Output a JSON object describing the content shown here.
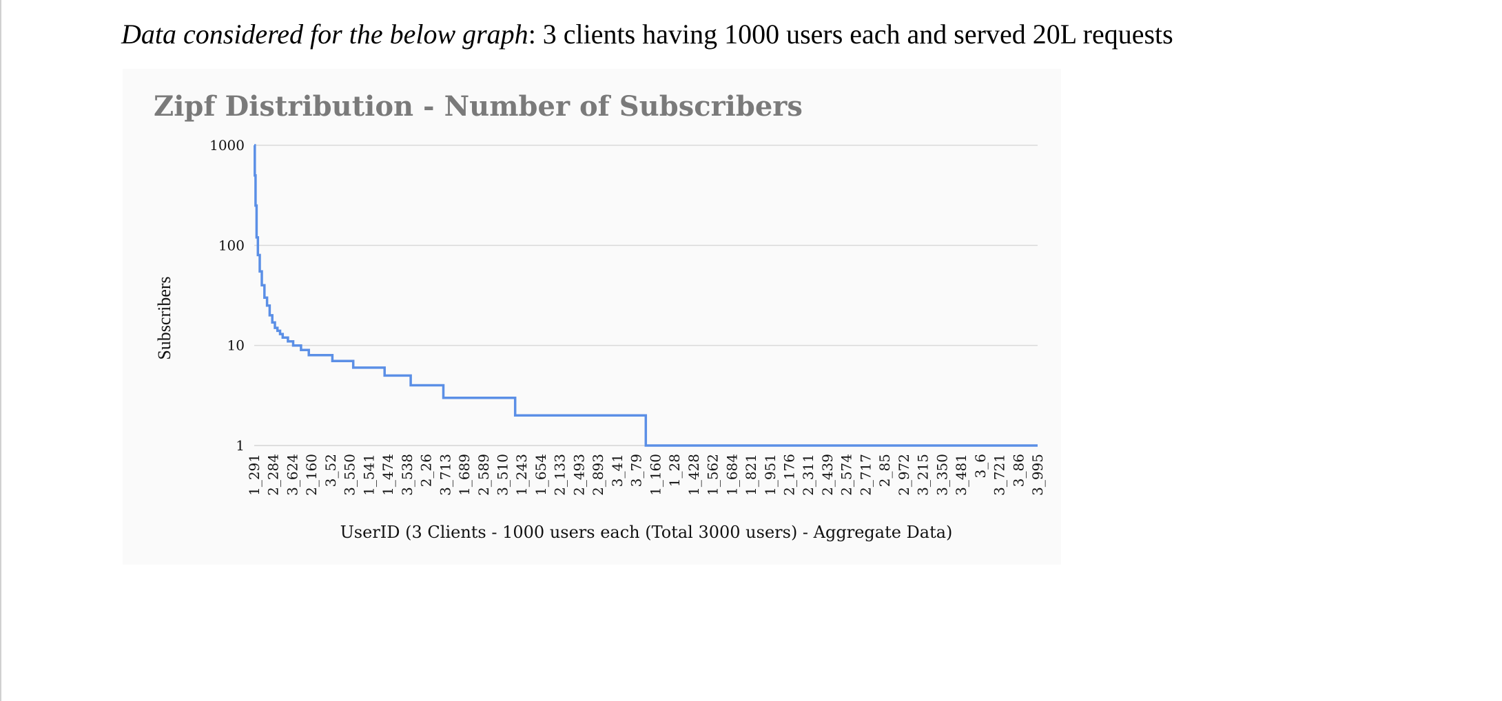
{
  "intro": {
    "italic": "Data considered for the below graph",
    "rest": ": 3 clients having 1000 users each and served 20L requests"
  },
  "colors": {
    "line": "#5b8fe6",
    "grid": "#d9d9d9",
    "title": "#7a7a7a"
  },
  "chart_data": {
    "type": "line",
    "title": "Zipf Distribution - Number of Subscribers",
    "xlabel": "UserID (3 Clients - 1000 users each (Total 3000 users) - Aggregate Data)",
    "ylabel": "Subscribers",
    "yscale": "log",
    "ylim": [
      1,
      1000
    ],
    "yticks": [
      1,
      10,
      100,
      1000
    ],
    "ytick_labels": [
      "1",
      "10",
      "100",
      "1000"
    ],
    "grid": true,
    "legend": "none",
    "x_rank_max": 3000,
    "x_tick_labels": [
      "1_291",
      "2_284",
      "3_624",
      "2_160",
      "3_52",
      "3_550",
      "1_541",
      "1_474",
      "3_538",
      "2_26",
      "3_713",
      "1_689",
      "2_589",
      "3_510",
      "1_243",
      "1_654",
      "2_133",
      "2_493",
      "2_893",
      "3_41",
      "3_79",
      "1_160",
      "1_28",
      "1_428",
      "1_562",
      "1_684",
      "1_821",
      "1_951",
      "2_176",
      "2_311",
      "2_439",
      "2_574",
      "2_717",
      "2_85",
      "2_972",
      "3_215",
      "3_350",
      "3_481",
      "3_6",
      "3_721",
      "3_86",
      "3_995"
    ],
    "series": [
      {
        "name": "",
        "x": [
          1,
          3,
          6,
          10,
          15,
          22,
          30,
          40,
          50,
          60,
          70,
          80,
          90,
          100,
          110,
          130,
          150,
          180,
          210,
          250,
          300,
          340,
          380,
          420,
          500,
          600,
          725,
          1000,
          1500,
          3000
        ],
        "y": [
          1000,
          500,
          250,
          120,
          80,
          55,
          40,
          30,
          25,
          20,
          17,
          15,
          14,
          13,
          12,
          11,
          10,
          9,
          8,
          8,
          7,
          7,
          6,
          6,
          5,
          4,
          3,
          2,
          1,
          1
        ]
      }
    ]
  }
}
